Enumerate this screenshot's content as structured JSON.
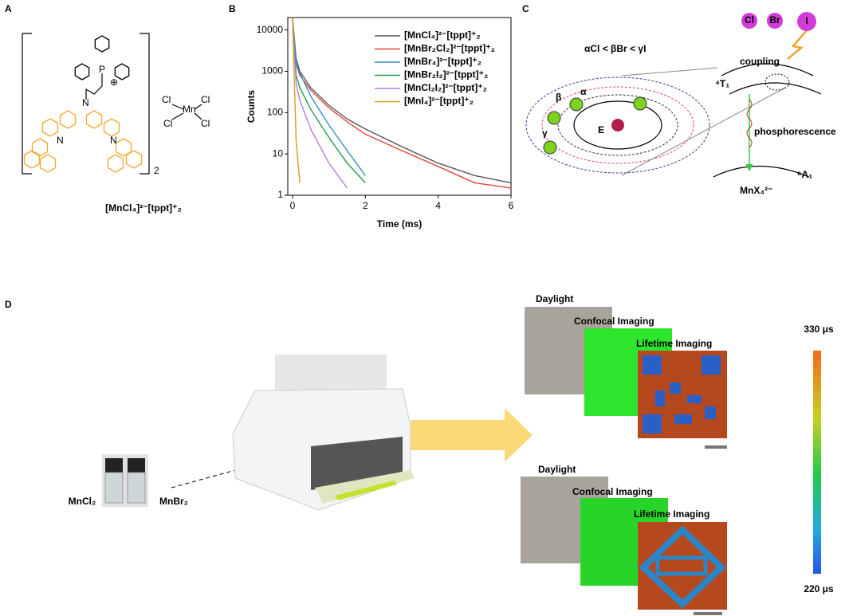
{
  "panel_labels": [
    "A",
    "B",
    "C",
    "D"
  ],
  "panel_a": {
    "caption": "[MnCl₄]²⁻[tppt]⁺₂",
    "phosphorus": "P",
    "charge": "⊕",
    "nitrogens": [
      "N",
      "N",
      "N"
    ],
    "count": "2",
    "anion": {
      "metal": "Mn",
      "ligands": [
        "Cl",
        "Cl",
        "Cl",
        "Cl"
      ]
    }
  },
  "chart_data": {
    "type": "line",
    "xlabel": "Time (ms)",
    "ylabel": "Counts",
    "x": [
      0,
      0.1,
      0.2,
      0.5,
      1,
      1.5,
      2,
      3,
      4,
      5,
      6
    ],
    "series": [
      {
        "name": "[MnCl₄]²⁻[tppt]⁺₂",
        "color": "#555555",
        "values": [
          20000,
          2000,
          1000,
          400,
          150,
          70,
          40,
          15,
          6,
          3,
          2
        ]
      },
      {
        "name": "[MnBr₂Cl₂]²⁻[tppt]⁺₂",
        "color": "#e8413b",
        "values": [
          20000,
          1500,
          800,
          350,
          130,
          60,
          30,
          12,
          5,
          2,
          1.5
        ]
      },
      {
        "name": "[MnBr₄]²⁻[tppt]⁺₂",
        "color": "#2f8fc0",
        "values": [
          20000,
          1500,
          900,
          250,
          50,
          12,
          3,
          null,
          null,
          null,
          null
        ]
      },
      {
        "name": "[MnBr₂I₂]²⁻[tppt]⁺₂",
        "color": "#1f9a4a",
        "values": [
          20000,
          800,
          400,
          120,
          25,
          6,
          2,
          null,
          null,
          null,
          null
        ]
      },
      {
        "name": "[MnCl₂I₂]²⁻[tppt]⁺₂",
        "color": "#b57ee8",
        "values": [
          20000,
          500,
          200,
          40,
          6,
          1.5,
          null,
          null,
          null,
          null,
          null
        ]
      },
      {
        "name": "[MnI₄]²⁻[tppt]⁺₂",
        "color": "#d4a017",
        "values": [
          20000,
          20,
          2,
          null,
          null,
          null,
          null,
          null,
          null,
          null,
          null
        ]
      }
    ],
    "xlim": [
      -0.13,
      6
    ],
    "ylim": [
      1,
      20000
    ],
    "xticks": [
      0,
      2,
      4,
      6
    ],
    "yticks": [
      1,
      10,
      100,
      1000,
      10000
    ],
    "log_y": true,
    "legend": "upper right"
  },
  "panel_c": {
    "inequality": "αCl < βBr < γI",
    "halides": [
      "Cl",
      "Br",
      "I"
    ],
    "coupling": "coupling",
    "excited_state": "⁴T₁",
    "emission": "phosphorescence",
    "ground_state": "⁶A₁",
    "species": "MnX₄²⁻",
    "field": "E",
    "greek": [
      "α",
      "β",
      "γ"
    ]
  },
  "panel_d": {
    "solutions": [
      "MnCl₂",
      "MnBr₂"
    ],
    "sets": [
      {
        "daylight": "Daylight",
        "confocal": "Confocal Imaging",
        "lifetime": "Lifetime Imaging"
      },
      {
        "daylight": "Daylight",
        "confocal": "Confocal Imaging",
        "lifetime": "Lifetime Imaging"
      }
    ],
    "colorbar": {
      "max": "330 μs",
      "min": "220 μs"
    }
  }
}
